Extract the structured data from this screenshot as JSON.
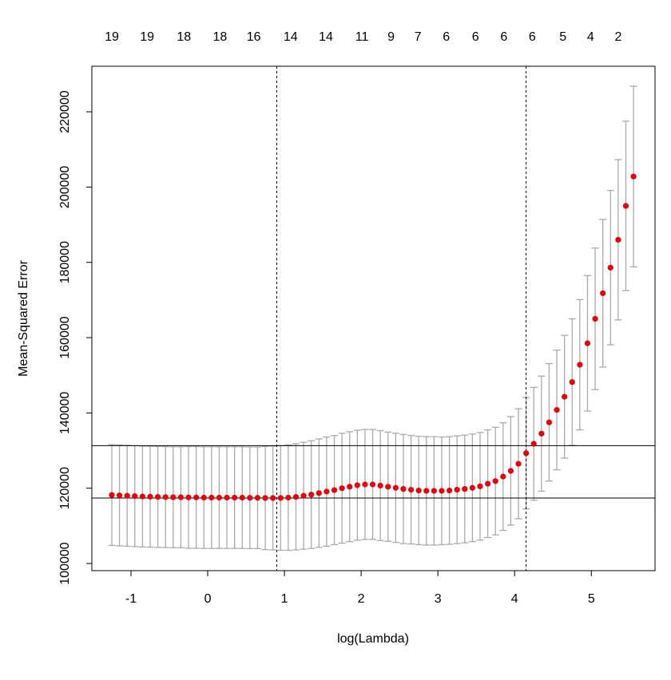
{
  "chart_data": {
    "type": "scatter",
    "xlabel": "log(Lambda)",
    "ylabel": "Mean-Squared Error",
    "x": [
      -1.25,
      -1.15,
      -1.05,
      -0.95,
      -0.85,
      -0.75,
      -0.65,
      -0.55,
      -0.45,
      -0.35,
      -0.25,
      -0.15,
      -0.05,
      0.05,
      0.15,
      0.25,
      0.35,
      0.45,
      0.55,
      0.65,
      0.75,
      0.85,
      0.95,
      1.05,
      1.15,
      1.25,
      1.35,
      1.45,
      1.55,
      1.65,
      1.75,
      1.85,
      1.95,
      2.05,
      2.15,
      2.25,
      2.35,
      2.45,
      2.55,
      2.65,
      2.75,
      2.85,
      2.95,
      3.05,
      3.15,
      3.25,
      3.35,
      3.45,
      3.55,
      3.65,
      3.75,
      3.85,
      3.95,
      4.05,
      4.15,
      4.25,
      4.35,
      4.45,
      4.55,
      4.65,
      4.75,
      4.85,
      4.95,
      5.05,
      5.15,
      5.25,
      5.35,
      5.45,
      5.55
    ],
    "values": [
      118200,
      118100,
      118000,
      117900,
      117800,
      117750,
      117700,
      117650,
      117600,
      117600,
      117550,
      117550,
      117500,
      117500,
      117500,
      117500,
      117500,
      117500,
      117450,
      117450,
      117400,
      117400,
      117400,
      117500,
      117700,
      118000,
      118300,
      118700,
      119100,
      119500,
      120000,
      120400,
      120800,
      121000,
      121000,
      120700,
      120400,
      120100,
      119800,
      119600,
      119400,
      119300,
      119300,
      119300,
      119400,
      119600,
      119800,
      120100,
      120500,
      121200,
      121900,
      123100,
      124600,
      126500,
      129300,
      131800,
      134500,
      137500,
      140800,
      144300,
      148200,
      152800,
      158500,
      165000,
      171800,
      178600,
      186000,
      195000,
      202800
    ],
    "errors": [
      13400,
      13400,
      13400,
      13400,
      13400,
      13400,
      13400,
      13400,
      13400,
      13400,
      13500,
      13500,
      13500,
      13500,
      13500,
      13500,
      13500,
      13500,
      13500,
      13500,
      13700,
      13800,
      13900,
      14000,
      14100,
      14200,
      14300,
      14400,
      14500,
      14500,
      14600,
      14600,
      14600,
      14600,
      14600,
      14600,
      14500,
      14500,
      14500,
      14400,
      14400,
      14400,
      14400,
      14300,
      14300,
      14300,
      14300,
      14300,
      14300,
      14300,
      14300,
      14300,
      14400,
      14600,
      14800,
      15000,
      15300,
      15600,
      15900,
      16300,
      16800,
      17300,
      18000,
      18800,
      19600,
      20500,
      21300,
      22500,
      24000
    ],
    "color": "#e8000b",
    "error_color": "#a9a9a9",
    "xlim": [
      -1.51,
      5.83
    ],
    "ylim": [
      98100,
      232100
    ],
    "xticks": [
      -1,
      0,
      1,
      2,
      3,
      4,
      5
    ],
    "yticks": [
      100000,
      120000,
      140000,
      160000,
      180000,
      200000,
      220000
    ],
    "top_ticks": [
      {
        "value": -1.25,
        "label": "19"
      },
      {
        "value": -0.79,
        "label": "19"
      },
      {
        "value": -0.31,
        "label": "18"
      },
      {
        "value": 0.16,
        "label": "18"
      },
      {
        "value": 0.6,
        "label": "16"
      },
      {
        "value": 1.08,
        "label": "14"
      },
      {
        "value": 1.54,
        "label": "14"
      },
      {
        "value": 2.01,
        "label": "11"
      },
      {
        "value": 2.39,
        "label": "9"
      },
      {
        "value": 2.74,
        "label": "7"
      },
      {
        "value": 3.11,
        "label": "6"
      },
      {
        "value": 3.49,
        "label": "6"
      },
      {
        "value": 3.86,
        "label": "6"
      },
      {
        "value": 4.23,
        "label": "6"
      },
      {
        "value": 4.63,
        "label": "5"
      },
      {
        "value": 4.99,
        "label": "4"
      },
      {
        "value": 5.35,
        "label": "2"
      }
    ],
    "vlines": [
      0.9,
      4.15
    ],
    "hlines": [
      117400,
      131300
    ]
  }
}
